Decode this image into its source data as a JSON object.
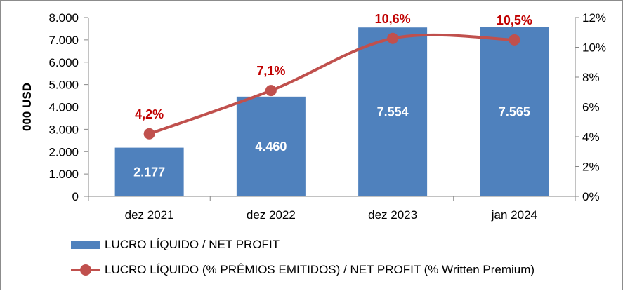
{
  "chart_data": {
    "type": "bar",
    "ylabel": "000 USD",
    "categories": [
      "dez 2021",
      "dez 2022",
      "dez 2023",
      "jan 2024"
    ],
    "y_ticks": [
      "0",
      "1.000",
      "2.000",
      "3.000",
      "4.000",
      "5.000",
      "6.000",
      "7.000",
      "8.000"
    ],
    "y2_ticks": [
      "0%",
      "2%",
      "4%",
      "6%",
      "8%",
      "10%",
      "12%"
    ],
    "ylim": [
      0,
      8000
    ],
    "y2lim": [
      0,
      12
    ],
    "series": [
      {
        "name": "LUCRO LÍQUIDO / NET PROFIT",
        "type": "bar",
        "axis": "left",
        "values": [
          2177,
          4460,
          7554,
          7565
        ],
        "labels": [
          "2.177",
          "4.460",
          "7.554",
          "7.565"
        ],
        "color": "#4f81bd"
      },
      {
        "name": "LUCRO LÍQUIDO (% PRÊMIOS EMITIDOS) / NET PROFIT (% Written Premium)",
        "type": "line",
        "axis": "right",
        "smooth": true,
        "marker": "circle",
        "values": [
          4.2,
          7.1,
          10.6,
          10.5
        ],
        "labels": [
          "4,2%",
          "7,1%",
          "10,6%",
          "10,5%"
        ],
        "color": "#c0504d"
      }
    ],
    "grid": false,
    "legend_position": "bottom-left"
  }
}
